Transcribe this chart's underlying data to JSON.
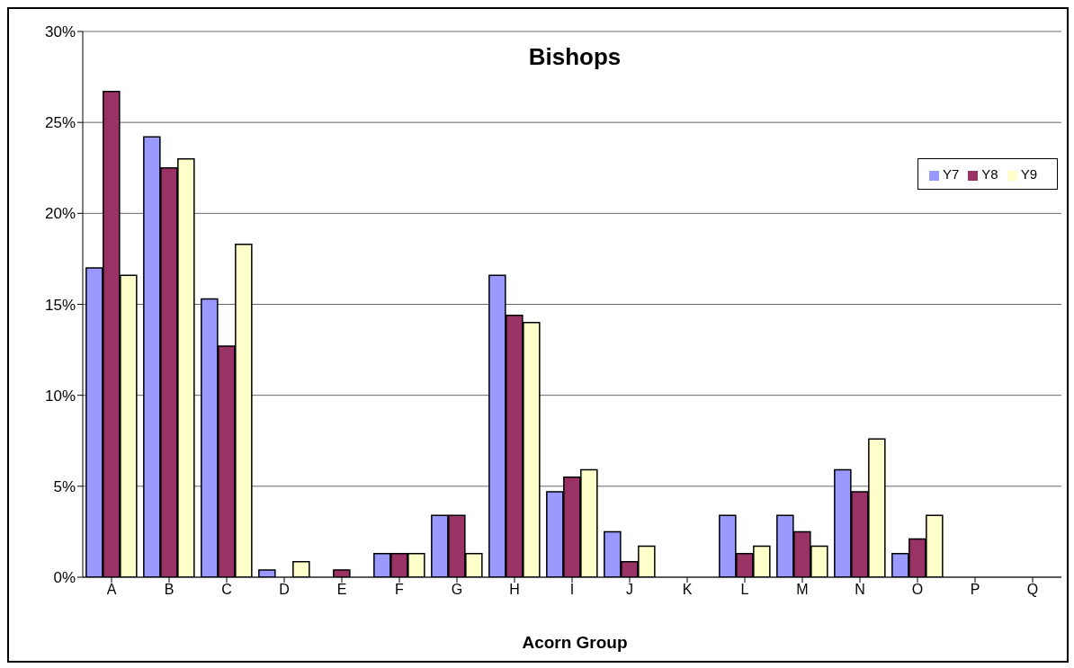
{
  "chart_data": {
    "type": "bar",
    "title": "Bishops",
    "xlabel": "Acorn Group",
    "categories": [
      "A",
      "B",
      "C",
      "D",
      "E",
      "F",
      "G",
      "H",
      "I",
      "J",
      "K",
      "L",
      "M",
      "N",
      "O",
      "P",
      "Q"
    ],
    "series": [
      {
        "name": "Y7",
        "color": "#9999ff",
        "values": [
          17.0,
          24.2,
          15.3,
          0.4,
          0,
          1.3,
          3.4,
          16.6,
          4.7,
          2.5,
          0,
          3.4,
          3.4,
          5.9,
          1.3,
          0,
          0
        ]
      },
      {
        "name": "Y8",
        "color": "#993366",
        "values": [
          26.7,
          22.5,
          12.7,
          0,
          0.4,
          1.3,
          3.4,
          14.4,
          5.5,
          0.85,
          0,
          1.3,
          2.5,
          4.7,
          2.1,
          0,
          0
        ]
      },
      {
        "name": "Y9",
        "color": "#ffffcc",
        "values": [
          16.6,
          23.0,
          18.3,
          0.85,
          0,
          1.3,
          1.3,
          14.0,
          5.9,
          1.7,
          0,
          1.7,
          1.7,
          7.6,
          3.4,
          0,
          0
        ]
      }
    ],
    "ylim": [
      0,
      30
    ],
    "yticks": [
      {
        "value": 0,
        "label": "0%"
      },
      {
        "value": 5,
        "label": "5%"
      },
      {
        "value": 10,
        "label": "10%"
      },
      {
        "value": 15,
        "label": "15%"
      },
      {
        "value": 20,
        "label": "20%"
      },
      {
        "value": 25,
        "label": "25%"
      },
      {
        "value": 30,
        "label": "30%"
      }
    ],
    "grid": "y",
    "legend": "top right"
  }
}
